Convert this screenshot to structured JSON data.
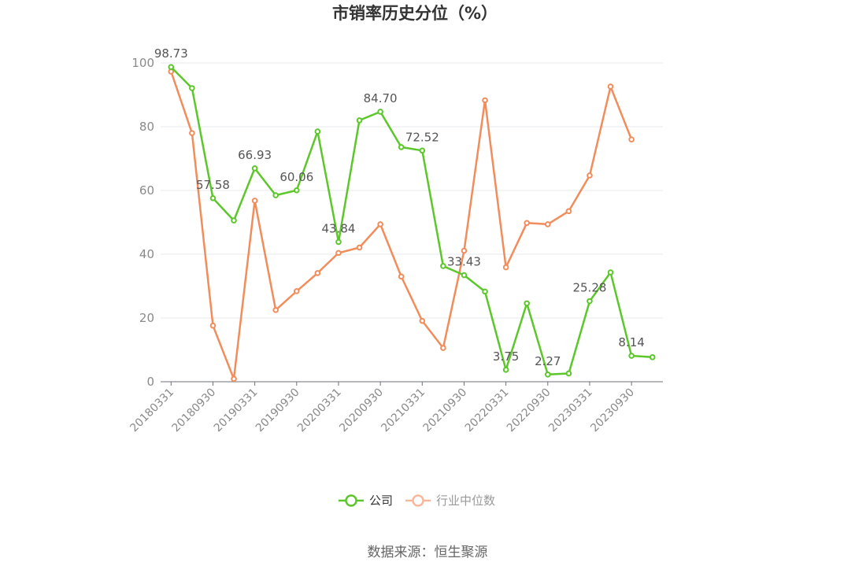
{
  "chart_data": {
    "type": "line",
    "title": "市销率历史分位（%）",
    "source": "数据来源：恒生聚源",
    "ylim": [
      0,
      100
    ],
    "yticks": [
      0,
      20,
      40,
      60,
      80,
      100
    ],
    "x": [
      "20180331",
      "20180630",
      "20180930",
      "20181231",
      "20190331",
      "20190630",
      "20190930",
      "20191231",
      "20200331",
      "20200630",
      "20200930",
      "20201231",
      "20210331",
      "20210630",
      "20210930",
      "20211231",
      "20220331",
      "20220630",
      "20220930",
      "20221231",
      "20230331",
      "20230630",
      "20230930",
      "20231231"
    ],
    "xtick_labels": [
      "20180331",
      "20180930",
      "20190331",
      "20190930",
      "20200331",
      "20200930",
      "20210331",
      "20210930",
      "20220331",
      "20220930",
      "20230331",
      "20230930"
    ],
    "grid": true,
    "legend_position": "bottom",
    "series": [
      {
        "name": "公司",
        "color": "#5cc72a",
        "values": [
          98.73,
          92.1,
          57.58,
          50.6,
          66.93,
          58.5,
          60.06,
          78.5,
          43.84,
          82.0,
          84.7,
          73.6,
          72.52,
          36.3,
          33.43,
          28.3,
          3.75,
          24.6,
          2.27,
          2.6,
          25.28,
          34.3,
          8.14,
          7.7
        ],
        "labels": {
          "0": "98.73",
          "2": "57.58",
          "4": "66.93",
          "6": "60.06",
          "8": "43.84",
          "10": "84.70",
          "12": "72.52",
          "14": "33.43",
          "16": "3.75",
          "18": "2.27",
          "20": "25.28",
          "22": "8.14"
        }
      },
      {
        "name": "行业中位数",
        "color": "#f28c5b",
        "values": [
          97.3,
          78.0,
          17.6,
          0.9,
          56.8,
          22.5,
          28.4,
          34.1,
          40.4,
          42.1,
          49.4,
          33.0,
          19.1,
          10.6,
          41.1,
          88.3,
          35.9,
          49.8,
          49.4,
          53.5,
          64.7,
          92.6,
          76.0,
          null
        ]
      }
    ]
  }
}
